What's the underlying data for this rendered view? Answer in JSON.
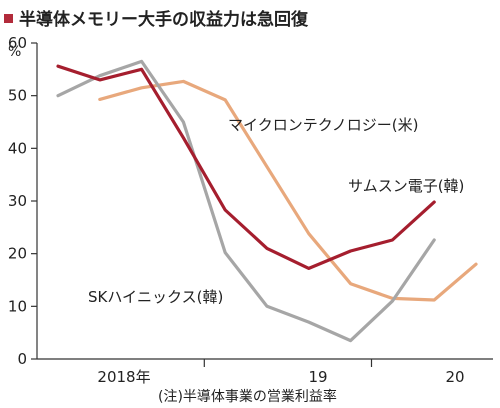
{
  "chart_data": {
    "type": "line",
    "title": "半導体メモリー大手の収益力は急回復",
    "y_unit": "%",
    "ylim": [
      0,
      60
    ],
    "y_ticks": [
      0,
      10,
      20,
      30,
      40,
      50,
      60
    ],
    "x_year_labels": [
      "2018年",
      "19",
      "20"
    ],
    "note": "(注)半導体事業の営業利益率",
    "grid": false,
    "x": [
      "2018Q1",
      "2018Q2",
      "2018Q3",
      "2018Q4",
      "2019Q1",
      "2019Q2",
      "2019Q3",
      "2019Q4",
      "2020Q1",
      "2020Q2",
      "2020Q3"
    ],
    "series": [
      {
        "name": "サムスン電子(韓)",
        "color": "#a51e2e",
        "values": [
          55.6,
          53.0,
          55.0,
          42.0,
          28.3,
          21.0,
          17.2,
          20.5,
          22.6,
          29.8,
          null
        ]
      },
      {
        "name": "マイクロンテクノロジー(米)",
        "color": "#e8a87c",
        "values": [
          null,
          49.3,
          51.5,
          52.7,
          49.2,
          36.5,
          23.8,
          14.3,
          11.5,
          11.2,
          18.0
        ]
      },
      {
        "name": "SKハイニックス(韓)",
        "color": "#a6a6a6",
        "values": [
          50.0,
          53.8,
          56.5,
          45.0,
          20.2,
          10.0,
          7.0,
          3.5,
          11.0,
          22.6,
          null
        ]
      }
    ]
  }
}
